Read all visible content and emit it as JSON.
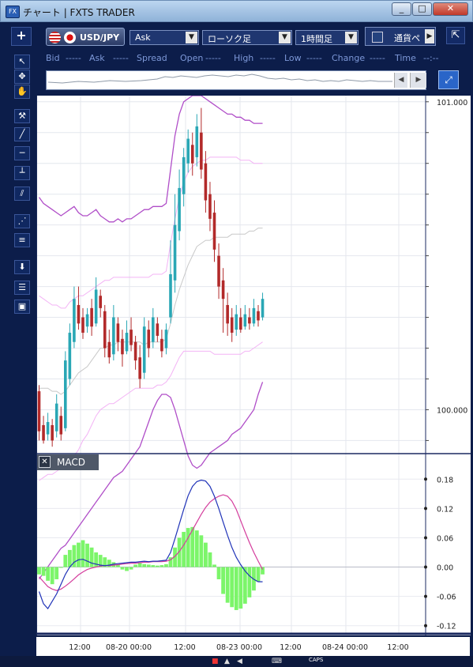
{
  "window": {
    "title": "チャート | FXTS TRADER",
    "minimize": "_",
    "maximize": "□",
    "close": "✕"
  },
  "toolbar": {
    "new_chart": "+",
    "symbol": "USD/JPY",
    "price_type": "Ask",
    "chart_type": "ローソク足",
    "timeframe": "1時間足",
    "pair_select": "通貨ペ",
    "undock": "⇱"
  },
  "quote_bar": [
    "Bid",
    "-----",
    "Ask",
    "-----",
    "Spread",
    "Open",
    "-----",
    "High",
    "-----",
    "Low",
    "-----",
    "Change",
    "-----",
    "Time",
    "--:--"
  ],
  "left_tools": [
    "select-arrow-icon",
    "crosshair-icon",
    "hand-pan-icon",
    "pin-icon",
    "line-draw-icon",
    "horizontal-line-icon",
    "vertical-line-icon",
    "parallel-lines-icon",
    "fan-icon",
    "fibonacci-icon",
    "download-icon",
    "list-icon",
    "camera-icon"
  ],
  "price_axis": {
    "top_label": "101.000",
    "mid_label": "100.000"
  },
  "macd": {
    "label": "MACD",
    "close": "✕",
    "ticks": [
      "0.18",
      "0.12",
      "0.06",
      "0.00",
      "-0.06",
      "-0.12"
    ]
  },
  "time_axis": [
    "12:00",
    "08-20 00:00",
    "12:00",
    "08-23 00:00",
    "12:00",
    "08-24 00:00",
    "12:00"
  ],
  "colors": {
    "up": "#2aa7b5",
    "down": "#b22a2a",
    "band_outer": "#b04ec8",
    "band_inner": "#f3b3f5",
    "sma": "#c8c8c8",
    "macd_line": "#2033b8",
    "signal_line": "#d43c9c",
    "histogram": "#7cf56a"
  },
  "chart_data": [
    {
      "type": "candlestick",
      "title": "USD/JPY 1時間足",
      "yrange": [
        99.86,
        101.02
      ],
      "ticks_labeled": [
        101.0,
        100.0
      ],
      "candles": [
        {
          "o": 100.06,
          "c": 99.93,
          "h": 100.08,
          "l": 99.9
        },
        {
          "o": 99.95,
          "c": 99.9,
          "h": 99.98,
          "l": 99.89
        },
        {
          "o": 99.92,
          "c": 99.96,
          "h": 99.99,
          "l": 99.9
        },
        {
          "o": 99.95,
          "c": 99.9,
          "h": 99.97,
          "l": 99.88
        },
        {
          "o": 99.93,
          "c": 100.02,
          "h": 100.05,
          "l": 99.91
        },
        {
          "o": 99.98,
          "c": 99.92,
          "h": 100.01,
          "l": 99.9
        },
        {
          "o": 99.94,
          "c": 100.16,
          "h": 100.19,
          "l": 99.93
        },
        {
          "o": 100.1,
          "c": 100.25,
          "h": 100.28,
          "l": 100.08
        },
        {
          "o": 100.22,
          "c": 100.36,
          "h": 100.4,
          "l": 100.2
        },
        {
          "o": 100.34,
          "c": 100.28,
          "h": 100.4,
          "l": 100.26
        },
        {
          "o": 100.3,
          "c": 100.25,
          "h": 100.33,
          "l": 100.23
        },
        {
          "o": 100.27,
          "c": 100.31,
          "h": 100.33,
          "l": 100.25
        },
        {
          "o": 100.33,
          "c": 100.27,
          "h": 100.36,
          "l": 100.24
        },
        {
          "o": 100.28,
          "c": 100.39,
          "h": 100.43,
          "l": 100.27
        },
        {
          "o": 100.37,
          "c": 100.33,
          "h": 100.39,
          "l": 100.3
        },
        {
          "o": 100.32,
          "c": 100.2,
          "h": 100.34,
          "l": 100.17
        },
        {
          "o": 100.22,
          "c": 100.17,
          "h": 100.26,
          "l": 100.15
        },
        {
          "o": 100.18,
          "c": 100.3,
          "h": 100.34,
          "l": 100.16
        },
        {
          "o": 100.28,
          "c": 100.22,
          "h": 100.3,
          "l": 100.19
        },
        {
          "o": 100.23,
          "c": 100.18,
          "h": 100.26,
          "l": 100.14
        },
        {
          "o": 100.19,
          "c": 100.25,
          "h": 100.29,
          "l": 100.18
        },
        {
          "o": 100.26,
          "c": 100.21,
          "h": 100.3,
          "l": 100.19
        },
        {
          "o": 100.22,
          "c": 100.16,
          "h": 100.24,
          "l": 100.13
        },
        {
          "o": 100.17,
          "c": 100.1,
          "h": 100.21,
          "l": 100.07
        },
        {
          "o": 100.12,
          "c": 100.27,
          "h": 100.3,
          "l": 100.1
        },
        {
          "o": 100.26,
          "c": 100.2,
          "h": 100.29,
          "l": 100.17
        },
        {
          "o": 100.22,
          "c": 100.3,
          "h": 100.33,
          "l": 100.2
        },
        {
          "o": 100.28,
          "c": 100.24,
          "h": 100.3,
          "l": 100.22
        },
        {
          "o": 100.23,
          "c": 100.19,
          "h": 100.26,
          "l": 100.17
        },
        {
          "o": 100.2,
          "c": 100.26,
          "h": 100.28,
          "l": 100.18
        },
        {
          "o": 100.3,
          "c": 100.44,
          "h": 100.55,
          "l": 100.28
        },
        {
          "o": 100.42,
          "c": 100.6,
          "h": 100.7,
          "l": 100.38
        },
        {
          "o": 100.58,
          "c": 100.72,
          "h": 100.78,
          "l": 100.55
        },
        {
          "o": 100.7,
          "c": 100.82,
          "h": 100.85,
          "l": 100.66
        },
        {
          "o": 100.8,
          "c": 100.88,
          "h": 100.91,
          "l": 100.77
        },
        {
          "o": 100.86,
          "c": 100.8,
          "h": 100.9,
          "l": 100.76
        },
        {
          "o": 100.82,
          "c": 100.92,
          "h": 100.96,
          "l": 100.79
        },
        {
          "o": 100.9,
          "c": 100.78,
          "h": 100.98,
          "l": 100.75
        },
        {
          "o": 100.8,
          "c": 100.68,
          "h": 100.84,
          "l": 100.64
        },
        {
          "o": 100.7,
          "c": 100.62,
          "h": 100.74,
          "l": 100.58
        },
        {
          "o": 100.64,
          "c": 100.52,
          "h": 100.68,
          "l": 100.48
        },
        {
          "o": 100.5,
          "c": 100.4,
          "h": 100.54,
          "l": 100.36
        },
        {
          "o": 100.42,
          "c": 100.36,
          "h": 100.46,
          "l": 100.25
        },
        {
          "o": 100.34,
          "c": 100.28,
          "h": 100.38,
          "l": 100.24
        },
        {
          "o": 100.3,
          "c": 100.25,
          "h": 100.33,
          "l": 100.22
        },
        {
          "o": 100.26,
          "c": 100.31,
          "h": 100.34,
          "l": 100.24
        },
        {
          "o": 100.3,
          "c": 100.26,
          "h": 100.33,
          "l": 100.25
        },
        {
          "o": 100.27,
          "c": 100.31,
          "h": 100.34,
          "l": 100.26
        },
        {
          "o": 100.3,
          "c": 100.28,
          "h": 100.33,
          "l": 100.26
        },
        {
          "o": 100.28,
          "c": 100.33,
          "h": 100.36,
          "l": 100.27
        },
        {
          "o": 100.32,
          "c": 100.29,
          "h": 100.34,
          "l": 100.27
        },
        {
          "o": 100.3,
          "c": 100.36,
          "h": 100.38,
          "l": 100.29
        }
      ],
      "bands": {
        "upper": [
          100.69,
          100.67,
          100.66,
          100.65,
          100.64,
          100.63,
          100.64,
          100.65,
          100.66,
          100.64,
          100.63,
          100.63,
          100.64,
          100.65,
          100.63,
          100.62,
          100.61,
          100.61,
          100.62,
          100.61,
          100.62,
          100.62,
          100.63,
          100.64,
          100.65,
          100.65,
          100.66,
          100.66,
          100.66,
          100.67,
          100.78,
          100.89,
          100.96,
          101.0,
          101.01,
          101.02,
          101.02,
          101.02,
          101.01,
          101.0,
          100.99,
          100.98,
          100.97,
          100.96,
          100.96,
          100.95,
          100.95,
          100.94,
          100.94,
          100.93,
          100.93,
          100.93
        ],
        "upper_inner": [
          100.37,
          100.36,
          100.35,
          100.34,
          100.34,
          100.33,
          100.33,
          100.35,
          100.36,
          100.37,
          100.37,
          100.38,
          100.39,
          100.4,
          100.41,
          100.42,
          100.42,
          100.43,
          100.43,
          100.43,
          100.43,
          100.43,
          100.43,
          100.43,
          100.43,
          100.43,
          100.44,
          100.44,
          100.44,
          100.45,
          100.54,
          100.62,
          100.69,
          100.74,
          100.77,
          100.79,
          100.8,
          100.81,
          100.81,
          100.82,
          100.82,
          100.82,
          100.82,
          100.82,
          100.82,
          100.82,
          100.81,
          100.81,
          100.81,
          100.8,
          100.8,
          100.8
        ],
        "middle": [
          100.07,
          100.07,
          100.07,
          100.06,
          100.06,
          100.05,
          100.06,
          100.08,
          100.1,
          100.12,
          100.13,
          100.14,
          100.16,
          100.18,
          100.2,
          100.2,
          100.21,
          100.21,
          100.22,
          100.22,
          100.22,
          100.22,
          100.22,
          100.22,
          100.21,
          100.22,
          100.22,
          100.22,
          100.22,
          100.23,
          100.28,
          100.34,
          100.39,
          100.43,
          100.47,
          100.5,
          100.53,
          100.54,
          100.55,
          100.55,
          100.56,
          100.56,
          100.56,
          100.56,
          100.57,
          100.57,
          100.57,
          100.57,
          100.58,
          100.58,
          100.59,
          100.59
        ],
        "lower_inner": [
          99.77,
          99.78,
          99.79,
          99.79,
          99.8,
          99.81,
          99.81,
          99.83,
          99.85,
          99.87,
          99.9,
          99.92,
          99.95,
          99.98,
          100.0,
          100.01,
          100.02,
          100.02,
          100.03,
          100.04,
          100.05,
          100.06,
          100.07,
          100.07,
          100.07,
          100.07,
          100.07,
          100.08,
          100.08,
          100.09,
          100.11,
          100.14,
          100.17,
          100.19,
          100.19,
          100.19,
          100.19,
          100.19,
          100.19,
          100.19,
          100.18,
          100.18,
          100.18,
          100.18,
          100.18,
          100.18,
          100.18,
          100.19,
          100.19,
          100.2,
          100.21,
          100.22
        ],
        "lower": [
          99.45,
          99.47,
          99.49,
          99.51,
          99.53,
          99.55,
          99.56,
          99.58,
          99.6,
          99.62,
          99.64,
          99.66,
          99.68,
          99.7,
          99.72,
          99.74,
          99.76,
          99.78,
          99.79,
          99.8,
          99.82,
          99.84,
          99.86,
          99.88,
          99.92,
          99.96,
          100.0,
          100.03,
          100.05,
          100.05,
          100.04,
          100.0,
          99.95,
          99.9,
          99.85,
          99.82,
          99.81,
          99.82,
          99.84,
          99.86,
          99.87,
          99.88,
          99.89,
          99.9,
          99.92,
          99.93,
          99.94,
          99.96,
          99.98,
          100.0,
          100.05,
          100.09
        ]
      }
    },
    {
      "type": "macd",
      "ylim": [
        -0.135,
        0.195
      ],
      "macd": [
        -0.05,
        -0.075,
        -0.085,
        -0.07,
        -0.055,
        -0.035,
        -0.015,
        0.0,
        0.01,
        0.015,
        0.016,
        0.012,
        0.008,
        0.006,
        0.004,
        0.003,
        0.004,
        0.006,
        0.007,
        0.008,
        0.009,
        0.01,
        0.01,
        0.011,
        0.012,
        0.011,
        0.012,
        0.012,
        0.013,
        0.014,
        0.03,
        0.058,
        0.088,
        0.118,
        0.146,
        0.165,
        0.175,
        0.178,
        0.176,
        0.165,
        0.145,
        0.12,
        0.092,
        0.065,
        0.04,
        0.02,
        0.005,
        -0.008,
        -0.018,
        -0.025,
        -0.03,
        -0.03
      ],
      "signal": [
        -0.02,
        -0.03,
        -0.04,
        -0.045,
        -0.048,
        -0.045,
        -0.039,
        -0.032,
        -0.024,
        -0.016,
        -0.01,
        -0.005,
        -0.002,
        0.0,
        0.002,
        0.003,
        0.003,
        0.004,
        0.005,
        0.006,
        0.007,
        0.008,
        0.008,
        0.009,
        0.01,
        0.01,
        0.011,
        0.011,
        0.011,
        0.012,
        0.015,
        0.022,
        0.032,
        0.045,
        0.06,
        0.076,
        0.092,
        0.108,
        0.122,
        0.133,
        0.14,
        0.145,
        0.148,
        0.145,
        0.135,
        0.118,
        0.095,
        0.072,
        0.05,
        0.03,
        0.012,
        -0.005
      ],
      "histogram": [
        -0.015,
        -0.018,
        -0.028,
        -0.035,
        -0.025,
        0.0,
        0.025,
        0.035,
        0.045,
        0.05,
        0.055,
        0.048,
        0.04,
        0.03,
        0.025,
        0.02,
        0.015,
        0.01,
        0.005,
        -0.005,
        -0.008,
        -0.005,
        0.005,
        0.008,
        0.006,
        0.005,
        0.004,
        0.003,
        0.004,
        0.006,
        0.02,
        0.04,
        0.06,
        0.072,
        0.08,
        0.082,
        0.075,
        0.065,
        0.05,
        0.03,
        0.005,
        -0.025,
        -0.055,
        -0.073,
        -0.082,
        -0.088,
        -0.085,
        -0.075,
        -0.062,
        -0.048,
        -0.03,
        -0.015
      ]
    }
  ]
}
